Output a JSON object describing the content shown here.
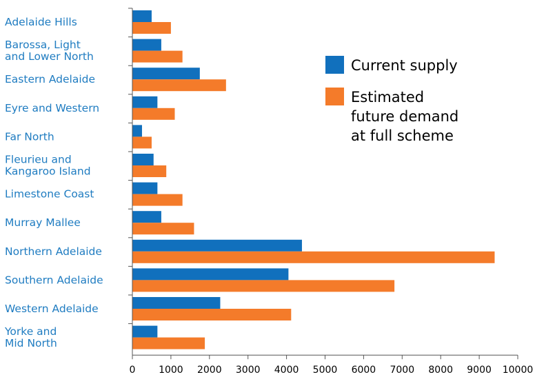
{
  "chart_data": {
    "type": "bar",
    "orientation": "horizontal",
    "categories": [
      [
        "Adelaide Hills"
      ],
      [
        "Barossa, Light",
        "and Lower North"
      ],
      [
        "Eastern Adelaide"
      ],
      [
        "Eyre and Western"
      ],
      [
        "Far North"
      ],
      [
        "Fleurieu and",
        "Kangaroo Island"
      ],
      [
        "Limestone Coast"
      ],
      [
        "Murray Mallee"
      ],
      [
        "Northern Adelaide"
      ],
      [
        "Southern Adelaide"
      ],
      [
        "Western Adelaide"
      ],
      [
        "Yorke and",
        "Mid North"
      ]
    ],
    "series": [
      {
        "name": "Current supply",
        "color": "#1170bd",
        "values": [
          500,
          750,
          1750,
          650,
          250,
          550,
          650,
          750,
          4400,
          4050,
          2280,
          650
        ]
      },
      {
        "name": "Estimated future demand at full scheme",
        "legend_lines": [
          "Estimated",
          "future demand",
          "at full scheme"
        ],
        "color": "#f47b2a",
        "values": [
          1000,
          1300,
          2430,
          1100,
          500,
          880,
          1300,
          1600,
          9400,
          6800,
          4120,
          1880
        ]
      }
    ],
    "xticks": [
      0,
      1000,
      2000,
      3000,
      4000,
      5000,
      6000,
      7000,
      8000,
      9000,
      10000
    ],
    "xlim": [
      0,
      10000
    ],
    "title": "",
    "xlabel": "",
    "ylabel": "",
    "grid": false,
    "legend_position": "right"
  }
}
